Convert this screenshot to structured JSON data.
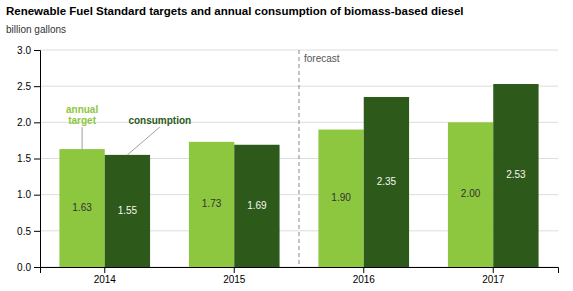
{
  "chart_data": {
    "type": "bar",
    "title": "Renewable Fuel Standard targets and annual consumption of biomass-based diesel",
    "ylabel": "billion gallons",
    "categories": [
      "2014",
      "2015",
      "2016",
      "2017"
    ],
    "series": [
      {
        "name": "annual\ntarget",
        "color": "#8dc63f",
        "values": [
          1.63,
          1.73,
          1.9,
          2.0
        ],
        "value_labels": [
          "1.63",
          "1.73",
          "1.90",
          "2.00"
        ]
      },
      {
        "name": "consumption",
        "color": "#2d5a1b",
        "values": [
          1.55,
          1.69,
          2.35,
          2.53
        ],
        "value_labels": [
          "1.55",
          "1.69",
          "2.35",
          "2.53"
        ]
      }
    ],
    "ylim": [
      0,
      3.0
    ],
    "yticks": [
      {
        "value": 0.0,
        "label": "0.0"
      },
      0.5,
      {
        "value": 1.0,
        "label": "1.0"
      },
      1.5,
      {
        "value": 2.0,
        "label": "2.0"
      },
      2.5,
      {
        "value": 3.0,
        "label": "3.0"
      }
    ],
    "grid": true,
    "data_labels": true,
    "annotations": [
      {
        "text": "forecast",
        "x": "2016"
      }
    ]
  }
}
